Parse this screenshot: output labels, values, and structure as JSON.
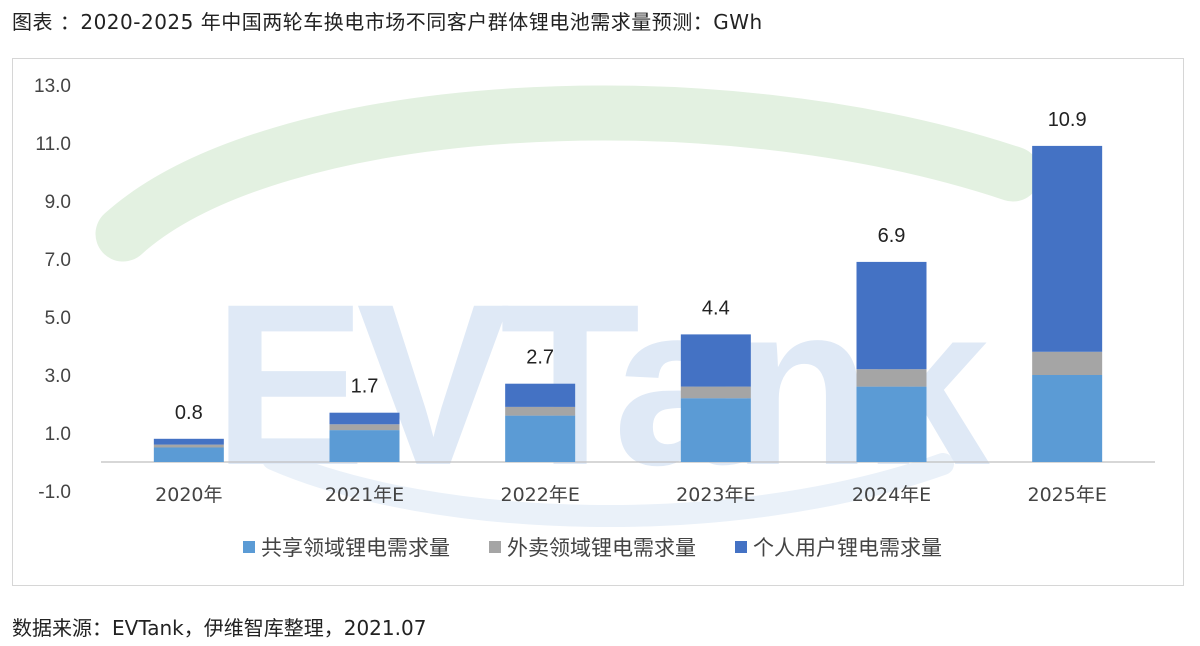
{
  "title": "图表 ：2020-2025 年中国两轮车换电市场不同客户群体锂电池需求量预测：GWh",
  "source": "数据来源：EVTank，伊维智库整理，2021.07",
  "watermark": "EVTank",
  "chart_data": {
    "type": "bar",
    "stacked": true,
    "categories": [
      "2020年",
      "2021年E",
      "2022年E",
      "2023年E",
      "2024年E",
      "2025年E"
    ],
    "series": [
      {
        "name": "共享领域锂电需求量",
        "color": "#5B9BD5",
        "values": [
          0.5,
          1.1,
          1.6,
          2.2,
          2.6,
          3.0
        ]
      },
      {
        "name": "外卖领域锂电需求量",
        "color": "#A5A5A5",
        "values": [
          0.1,
          0.2,
          0.3,
          0.4,
          0.6,
          0.8
        ]
      },
      {
        "name": "个人用户锂电需求量",
        "color": "#4472C4",
        "values": [
          0.2,
          0.4,
          0.8,
          1.8,
          3.7,
          7.1
        ]
      }
    ],
    "totals": [
      0.8,
      1.7,
      2.7,
      4.4,
      6.9,
      10.9
    ],
    "total_labels": [
      "0.8",
      "1.7",
      "2.7",
      "4.4",
      "6.9",
      "10.9"
    ],
    "y_ticks": [
      "13.0",
      "11.0",
      "9.0",
      "7.0",
      "5.0",
      "3.0",
      "1.0",
      "-1.0"
    ],
    "ylim": [
      -1.0,
      13.0
    ],
    "legend_position": "bottom",
    "grid": false
  }
}
